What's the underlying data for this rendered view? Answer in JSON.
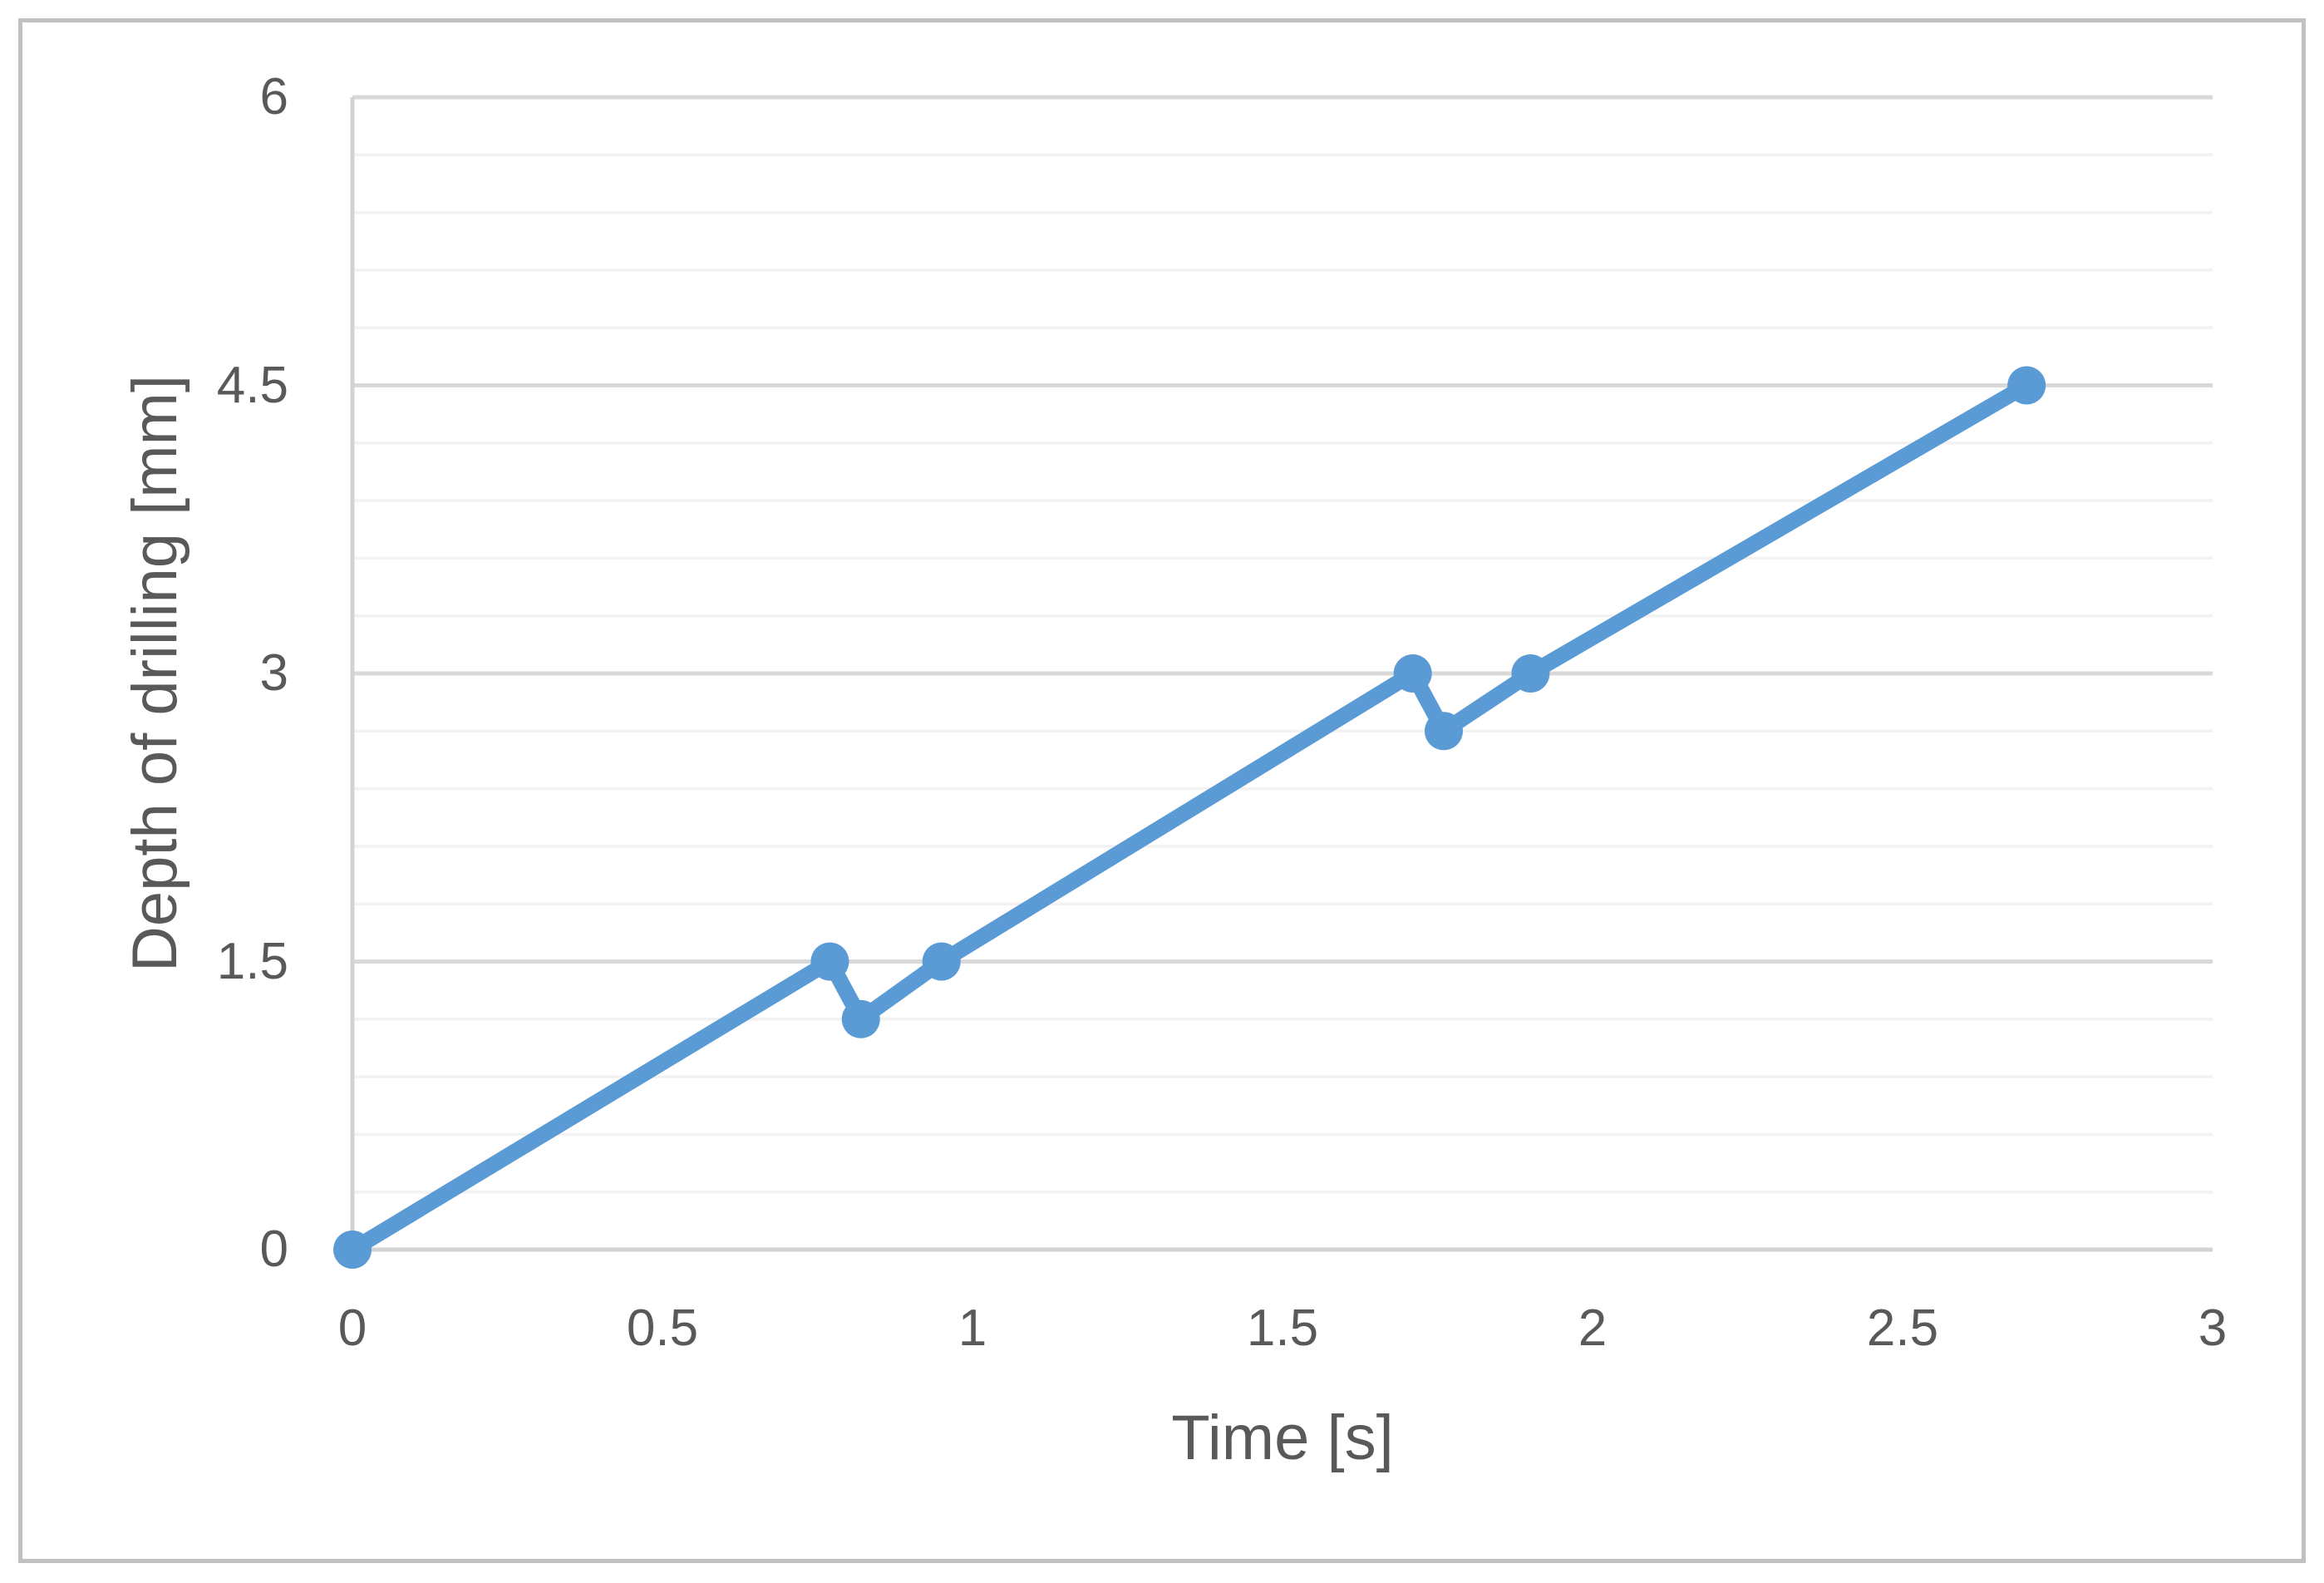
{
  "chart_data": {
    "type": "line",
    "title": "",
    "xlabel": "Time [s]",
    "ylabel": "Depth of drilling [mm]",
    "x": [
      0,
      0.77,
      0.82,
      0.95,
      1.71,
      1.76,
      1.9,
      2.7
    ],
    "y": [
      0,
      1.5,
      1.2,
      1.5,
      3,
      2.7,
      3,
      4.5
    ],
    "xlim": [
      0,
      3
    ],
    "ylim": [
      0,
      6
    ],
    "x_tick_labels": [
      "0",
      "0.5",
      "1",
      "1.5",
      "2",
      "2.5",
      "3"
    ],
    "y_tick_labels": [
      "0",
      "1.5",
      "3",
      "4.5",
      "6"
    ],
    "x_major_unit": 0.5,
    "y_major_unit": 1.5,
    "y_minor_unit": 0.3,
    "grid": "horizontal major and minor gridlines, no vertical gridlines",
    "legend": "none",
    "series_style": {
      "line_color": "#5B9BD5",
      "marker": "filled-circle",
      "marker_color": "#5B9BD5"
    }
  },
  "colors": {
    "background": "#FFFFFF",
    "chart_border": "#C1C1C1",
    "axis_line": "#D3D3D3",
    "major_gridline": "#D9D9D9",
    "minor_gridline": "#F2F2F2",
    "tick_label_text": "#595959",
    "axis_title_text": "#595959",
    "series_blue": "#5B9BD5"
  }
}
